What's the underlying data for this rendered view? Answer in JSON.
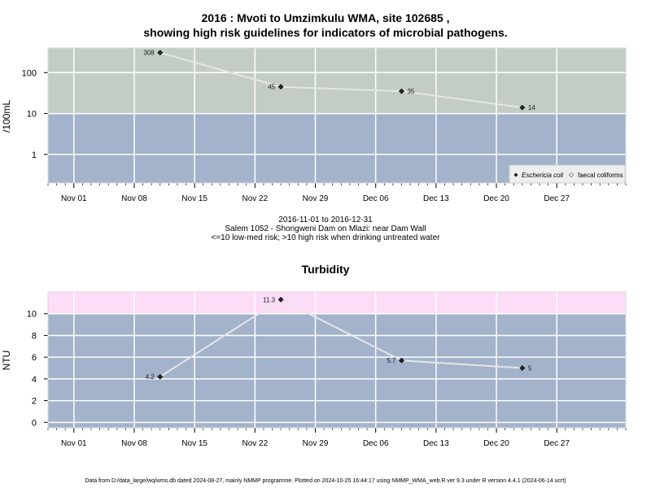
{
  "chart_data": [
    {
      "type": "line",
      "title": "2016 : Mvoti to Umzimkulu WMA, site 102685 ,",
      "subtitle": "showing high risk guidelines for indicators of microbial pathogens.",
      "ylabel": "/100mL",
      "yscale": "log",
      "ylim": [
        0.2,
        400
      ],
      "y_ticks": [
        1,
        10,
        100
      ],
      "x_ticks": [
        "Nov 01",
        "Nov 08",
        "Nov 15",
        "Nov 22",
        "Nov 29",
        "Dec 06",
        "Dec 13",
        "Dec 20",
        "Dec 27"
      ],
      "x_tick_dates": [
        "2016-11-01",
        "2016-11-08",
        "2016-11-15",
        "2016-11-22",
        "2016-11-29",
        "2016-12-06",
        "2016-12-13",
        "2016-12-20",
        "2016-12-27"
      ],
      "xlim": [
        "2016-10-29",
        "2017-01-04"
      ],
      "grid": true,
      "guideline_zones": [
        {
          "from": 0.2,
          "to": 10,
          "color": "#a2b3cb"
        },
        {
          "from": 10,
          "to": 400,
          "color": "#c3cdc3"
        }
      ],
      "series": [
        {
          "name": "Eschericia coli",
          "marker": "filled-diamond",
          "x": [
            "2016-11-11",
            "2016-11-25",
            "2016-12-09",
            "2016-12-23"
          ],
          "values": [
            308,
            45,
            35,
            14
          ],
          "labels": [
            "308",
            "45",
            "35",
            "14"
          ]
        }
      ],
      "legend": {
        "position": "bottom-right",
        "entries": [
          "Eschericia coli",
          "faecal coliforms"
        ]
      }
    },
    {
      "type": "line",
      "title": "Turbidity",
      "ylabel": "NTU",
      "ylim": [
        -0.5,
        12
      ],
      "y_ticks": [
        0,
        2,
        4,
        6,
        8,
        10
      ],
      "x_ticks": [
        "Nov 01",
        "Nov 08",
        "Nov 15",
        "Nov 22",
        "Nov 29",
        "Dec 06",
        "Dec 13",
        "Dec 20",
        "Dec 27"
      ],
      "x_tick_dates": [
        "2016-11-01",
        "2016-11-08",
        "2016-11-15",
        "2016-11-22",
        "2016-11-29",
        "2016-12-06",
        "2016-12-13",
        "2016-12-20",
        "2016-12-27"
      ],
      "xlim": [
        "2016-10-29",
        "2017-01-04"
      ],
      "grid": true,
      "guideline_zones": [
        {
          "from": -0.5,
          "to": 10,
          "color": "#a2b3cb"
        },
        {
          "from": 10,
          "to": 12,
          "color": "#fddcf8"
        }
      ],
      "series": [
        {
          "marker": "filled-diamond",
          "x": [
            "2016-11-11",
            "2016-11-25",
            "2016-12-09",
            "2016-12-23"
          ],
          "values": [
            4.2,
            11.3,
            5.7,
            5
          ],
          "labels": [
            "4.2",
            "11.3",
            "5.7",
            "5"
          ]
        }
      ]
    }
  ],
  "info": {
    "date_range": "2016-11-01 to 2016-12-31",
    "site_name": "Salem 1052 - Shongweni Dam on Mlazi: near Dam Wall",
    "risk_note": "<=10 low-med risk; >10 high risk when drinking untreated water"
  },
  "footer": "Data from D:/data_large/wq/wms.db dated 2024-08-27, mainly NMMP programme. Plotted on 2024-10-25 16:44:17 using NMMP_WMA_web.R ver 9.3 under R version 4.4.1 (2024-06-14 ucrt)"
}
